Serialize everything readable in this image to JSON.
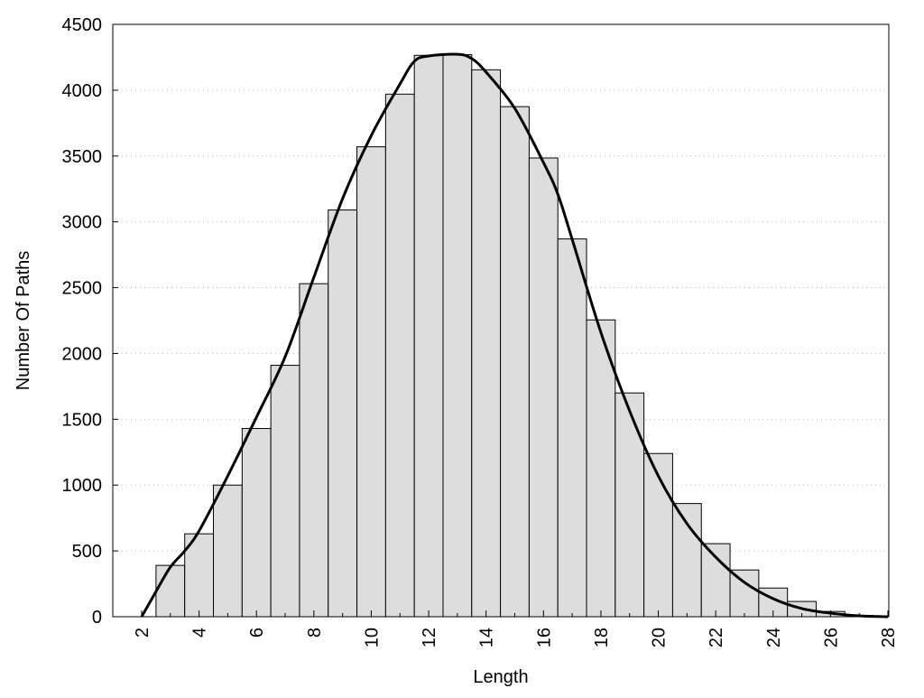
{
  "chart_data": {
    "type": "bar",
    "title": "",
    "xlabel": "Length",
    "ylabel": "Number Of Paths",
    "xlim": [
      1,
      28
    ],
    "ylim": [
      0,
      4500
    ],
    "xticks": [
      2,
      4,
      6,
      8,
      10,
      12,
      14,
      16,
      18,
      20,
      22,
      24,
      26,
      28
    ],
    "yticks": [
      0,
      500,
      1000,
      1500,
      2000,
      2500,
      3000,
      3500,
      4000,
      4500
    ],
    "grid": "horizontal dotted",
    "legend": "none",
    "bar_color": "#dddddd",
    "x": [
      3,
      4,
      5,
      6,
      7,
      8,
      9,
      10,
      11,
      12,
      13,
      14,
      15,
      16,
      17,
      18,
      19,
      20,
      21,
      22,
      23,
      24,
      25,
      26,
      27
    ],
    "values": [
      390,
      630,
      1000,
      1430,
      1910,
      2530,
      3090,
      3570,
      3970,
      4265,
      4270,
      4155,
      3875,
      3485,
      2870,
      2255,
      1700,
      1240,
      860,
      555,
      355,
      218,
      116,
      40,
      10
    ],
    "curve": {
      "type": "line",
      "x": [
        2,
        2.5,
        3,
        3.5,
        4,
        5,
        6,
        7,
        8,
        9,
        10,
        11,
        11.5,
        12,
        13,
        13.5,
        14,
        15,
        16,
        16.5,
        17,
        18,
        19,
        20,
        21,
        22,
        23,
        24,
        25,
        26,
        27,
        28
      ],
      "y": [
        0,
        192,
        377,
        500,
        652,
        1070,
        1516,
        1975,
        2579,
        3176,
        3656,
        4047,
        4219,
        4260,
        4273,
        4240,
        4137,
        3862,
        3450,
        3210,
        2867,
        2160,
        1564,
        1070,
        707,
        453,
        261,
        137,
        62,
        27,
        7,
        0
      ]
    }
  }
}
